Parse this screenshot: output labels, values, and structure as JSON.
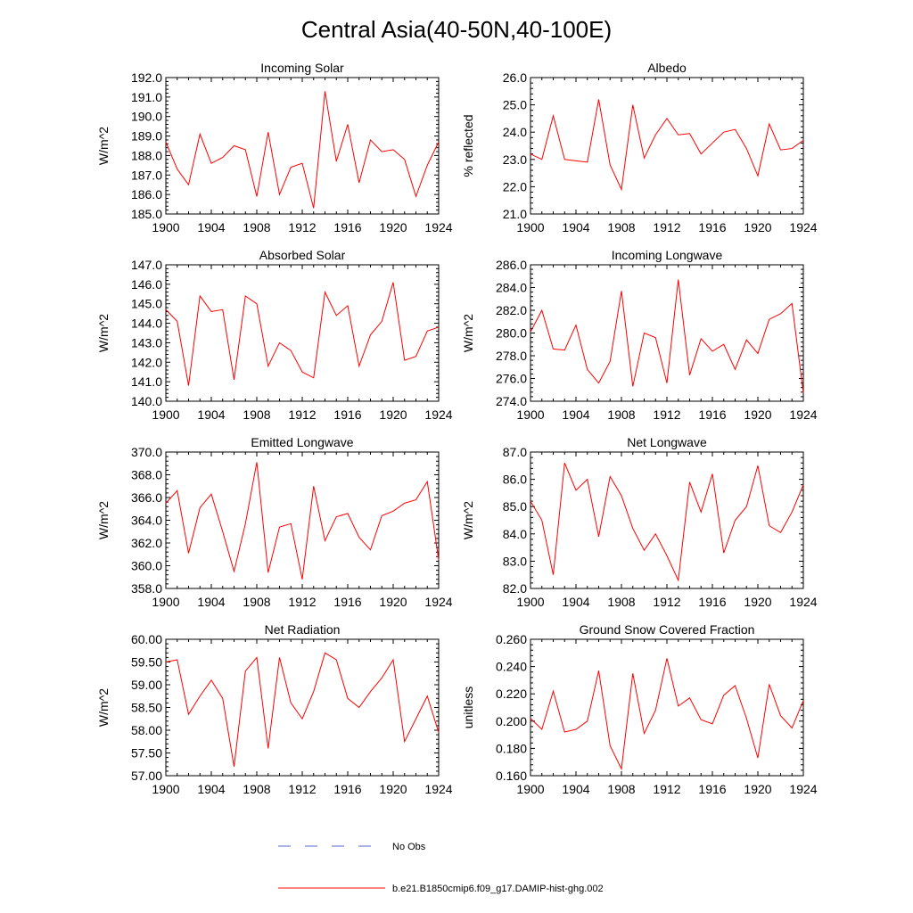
{
  "figure": {
    "title": "Central Asia(40-50N,40-100E)",
    "legend": [
      {
        "label": "No Obs",
        "color": "#5566cc",
        "style": "dashed"
      },
      {
        "label": "b.e21.B1850cmip6.f09_g17.DAMIP-hist-ghg.002",
        "color": "#ff0000",
        "style": "solid"
      }
    ],
    "series_color": "#ff0000"
  },
  "chart_data": [
    {
      "type": "line",
      "title": "Incoming Solar",
      "ylabel": "W/m^2",
      "xlim": [
        1900,
        1924
      ],
      "ylim": [
        185.0,
        192.0
      ],
      "xticks": [
        "1900",
        "1904",
        "1908",
        "1912",
        "1916",
        "1920",
        "1924"
      ],
      "yticks": [
        "185.0",
        "186.0",
        "187.0",
        "188.0",
        "189.0",
        "190.0",
        "191.0",
        "192.0"
      ],
      "x": [
        1900,
        1901,
        1902,
        1903,
        1904,
        1905,
        1906,
        1907,
        1908,
        1909,
        1910,
        1911,
        1912,
        1913,
        1914,
        1915,
        1916,
        1917,
        1918,
        1919,
        1920,
        1921,
        1922,
        1923,
        1924
      ],
      "series": [
        {
          "name": "b.e21.B1850cmip6.f09_g17.DAMIP-hist-ghg.002",
          "values": [
            188.7,
            187.3,
            186.5,
            189.1,
            187.6,
            187.9,
            188.5,
            188.3,
            185.9,
            189.2,
            186.0,
            187.4,
            187.6,
            185.3,
            191.3,
            187.7,
            189.6,
            186.6,
            188.8,
            188.2,
            188.3,
            187.8,
            185.9,
            187.5,
            188.7
          ]
        }
      ]
    },
    {
      "type": "line",
      "title": "Albedo",
      "ylabel": "% reflected",
      "xlim": [
        1900,
        1924
      ],
      "ylim": [
        21.0,
        26.0
      ],
      "xticks": [
        "1900",
        "1904",
        "1908",
        "1912",
        "1916",
        "1920",
        "1924"
      ],
      "yticks": [
        "21.0",
        "22.0",
        "23.0",
        "24.0",
        "25.0",
        "26.0"
      ],
      "x": [
        1900,
        1901,
        1902,
        1903,
        1904,
        1905,
        1906,
        1907,
        1908,
        1909,
        1910,
        1911,
        1912,
        1913,
        1914,
        1915,
        1916,
        1917,
        1918,
        1919,
        1920,
        1921,
        1922,
        1923,
        1924
      ],
      "series": [
        {
          "name": "b.e21.B1850cmip6.f09_g17.DAMIP-hist-ghg.002",
          "values": [
            23.2,
            23.0,
            24.6,
            23.0,
            22.95,
            22.9,
            25.2,
            22.8,
            21.9,
            25.0,
            23.05,
            23.9,
            24.5,
            23.9,
            23.95,
            23.2,
            23.6,
            24.0,
            24.1,
            23.4,
            22.4,
            24.3,
            23.35,
            23.4,
            23.7
          ]
        }
      ]
    },
    {
      "type": "line",
      "title": "Absorbed Solar",
      "ylabel": "W/m^2",
      "xlim": [
        1900,
        1924
      ],
      "ylim": [
        140.0,
        147.0
      ],
      "xticks": [
        "1900",
        "1904",
        "1908",
        "1912",
        "1916",
        "1920",
        "1924"
      ],
      "yticks": [
        "140.0",
        "141.0",
        "142.0",
        "143.0",
        "144.0",
        "145.0",
        "146.0",
        "147.0"
      ],
      "x": [
        1900,
        1901,
        1902,
        1903,
        1904,
        1905,
        1906,
        1907,
        1908,
        1909,
        1910,
        1911,
        1912,
        1913,
        1914,
        1915,
        1916,
        1917,
        1918,
        1919,
        1920,
        1921,
        1922,
        1923,
        1924
      ],
      "series": [
        {
          "name": "b.e21.B1850cmip6.f09_g17.DAMIP-hist-ghg.002",
          "values": [
            144.7,
            144.1,
            140.8,
            145.4,
            144.6,
            144.7,
            141.1,
            145.4,
            145.0,
            141.8,
            143.0,
            142.6,
            141.5,
            141.2,
            145.6,
            144.4,
            144.9,
            141.8,
            143.4,
            144.1,
            146.1,
            142.1,
            142.3,
            143.6,
            143.8
          ]
        }
      ]
    },
    {
      "type": "line",
      "title": "Incoming Longwave",
      "ylabel": "W/m^2",
      "xlim": [
        1900,
        1924
      ],
      "ylim": [
        274.0,
        286.0
      ],
      "xticks": [
        "1900",
        "1904",
        "1908",
        "1912",
        "1916",
        "1920",
        "1924"
      ],
      "yticks": [
        "274.0",
        "276.0",
        "278.0",
        "280.0",
        "282.0",
        "284.0",
        "286.0"
      ],
      "x": [
        1900,
        1901,
        1902,
        1903,
        1904,
        1905,
        1906,
        1907,
        1908,
        1909,
        1910,
        1911,
        1912,
        1913,
        1914,
        1915,
        1916,
        1917,
        1918,
        1919,
        1920,
        1921,
        1922,
        1923,
        1924
      ],
      "series": [
        {
          "name": "b.e21.B1850cmip6.f09_g17.DAMIP-hist-ghg.002",
          "values": [
            280.1,
            282.0,
            278.6,
            278.5,
            280.7,
            276.8,
            275.6,
            277.5,
            283.7,
            275.3,
            280.0,
            279.6,
            275.6,
            284.7,
            276.3,
            279.5,
            278.4,
            279.0,
            276.8,
            279.4,
            278.2,
            281.2,
            281.7,
            282.6,
            274.7
          ]
        }
      ]
    },
    {
      "type": "line",
      "title": "Emitted Longwave",
      "ylabel": "W/m^2",
      "xlim": [
        1900,
        1924
      ],
      "ylim": [
        358.0,
        370.0
      ],
      "xticks": [
        "1900",
        "1904",
        "1908",
        "1912",
        "1916",
        "1920",
        "1924"
      ],
      "yticks": [
        "358.0",
        "360.0",
        "362.0",
        "364.0",
        "366.0",
        "368.0",
        "370.0"
      ],
      "x": [
        1900,
        1901,
        1902,
        1903,
        1904,
        1905,
        1906,
        1907,
        1908,
        1909,
        1910,
        1911,
        1912,
        1913,
        1914,
        1915,
        1916,
        1917,
        1918,
        1919,
        1920,
        1921,
        1922,
        1923,
        1924
      ],
      "series": [
        {
          "name": "b.e21.B1850cmip6.f09_g17.DAMIP-hist-ghg.002",
          "values": [
            365.5,
            366.6,
            361.1,
            365.1,
            366.3,
            363.0,
            359.5,
            363.7,
            369.1,
            359.4,
            363.4,
            363.7,
            358.8,
            367.0,
            362.2,
            364.3,
            364.6,
            362.5,
            361.4,
            364.4,
            364.8,
            365.5,
            365.8,
            367.4,
            360.5
          ]
        }
      ]
    },
    {
      "type": "line",
      "title": "Net Longwave",
      "ylabel": "W/m^2",
      "xlim": [
        1900,
        1924
      ],
      "ylim": [
        82.0,
        87.0
      ],
      "xticks": [
        "1900",
        "1904",
        "1908",
        "1912",
        "1916",
        "1920",
        "1924"
      ],
      "yticks": [
        "82.0",
        "83.0",
        "84.0",
        "85.0",
        "86.0",
        "87.0"
      ],
      "x": [
        1900,
        1901,
        1902,
        1903,
        1904,
        1905,
        1906,
        1907,
        1908,
        1909,
        1910,
        1911,
        1912,
        1913,
        1914,
        1915,
        1916,
        1917,
        1918,
        1919,
        1920,
        1921,
        1922,
        1923,
        1924
      ],
      "series": [
        {
          "name": "b.e21.B1850cmip6.f09_g17.DAMIP-hist-ghg.002",
          "values": [
            85.2,
            84.5,
            82.5,
            86.6,
            85.6,
            86.0,
            83.9,
            86.1,
            85.4,
            84.2,
            83.4,
            84.0,
            83.2,
            82.3,
            85.9,
            84.8,
            86.2,
            83.3,
            84.5,
            85.0,
            86.5,
            84.3,
            84.05,
            84.8,
            85.8
          ]
        }
      ]
    },
    {
      "type": "line",
      "title": "Net Radiation",
      "ylabel": "W/m^2",
      "xlim": [
        1900,
        1924
      ],
      "ylim": [
        57.0,
        60.0
      ],
      "xticks": [
        "1900",
        "1904",
        "1908",
        "1912",
        "1916",
        "1920",
        "1924"
      ],
      "yticks": [
        "57.00",
        "57.50",
        "58.00",
        "58.50",
        "59.00",
        "59.50",
        "60.00"
      ],
      "x": [
        1900,
        1901,
        1902,
        1903,
        1904,
        1905,
        1906,
        1907,
        1908,
        1909,
        1910,
        1911,
        1912,
        1913,
        1914,
        1915,
        1916,
        1917,
        1918,
        1919,
        1920,
        1921,
        1922,
        1923,
        1924
      ],
      "series": [
        {
          "name": "b.e21.B1850cmip6.f09_g17.DAMIP-hist-ghg.002",
          "values": [
            59.5,
            59.55,
            58.35,
            58.75,
            59.1,
            58.7,
            57.2,
            59.3,
            59.6,
            57.6,
            59.6,
            58.6,
            58.25,
            58.85,
            59.7,
            59.55,
            58.7,
            58.5,
            58.85,
            59.15,
            59.55,
            57.75,
            58.25,
            58.75,
            57.95
          ]
        }
      ]
    },
    {
      "type": "line",
      "title": "Ground Snow Covered Fraction",
      "ylabel": "unitless",
      "xlim": [
        1900,
        1924
      ],
      "ylim": [
        0.16,
        0.26
      ],
      "xticks": [
        "1900",
        "1904",
        "1908",
        "1912",
        "1916",
        "1920",
        "1924"
      ],
      "yticks": [
        "0.160",
        "0.180",
        "0.200",
        "0.220",
        "0.240",
        "0.260"
      ],
      "x": [
        1900,
        1901,
        1902,
        1903,
        1904,
        1905,
        1906,
        1907,
        1908,
        1909,
        1910,
        1911,
        1912,
        1913,
        1914,
        1915,
        1916,
        1917,
        1918,
        1919,
        1920,
        1921,
        1922,
        1923,
        1924
      ],
      "series": [
        {
          "name": "b.e21.B1850cmip6.f09_g17.DAMIP-hist-ghg.002",
          "values": [
            0.202,
            0.194,
            0.222,
            0.192,
            0.194,
            0.2,
            0.237,
            0.182,
            0.165,
            0.235,
            0.191,
            0.208,
            0.246,
            0.211,
            0.217,
            0.201,
            0.198,
            0.219,
            0.226,
            0.202,
            0.173,
            0.227,
            0.204,
            0.195,
            0.215
          ]
        }
      ]
    }
  ]
}
